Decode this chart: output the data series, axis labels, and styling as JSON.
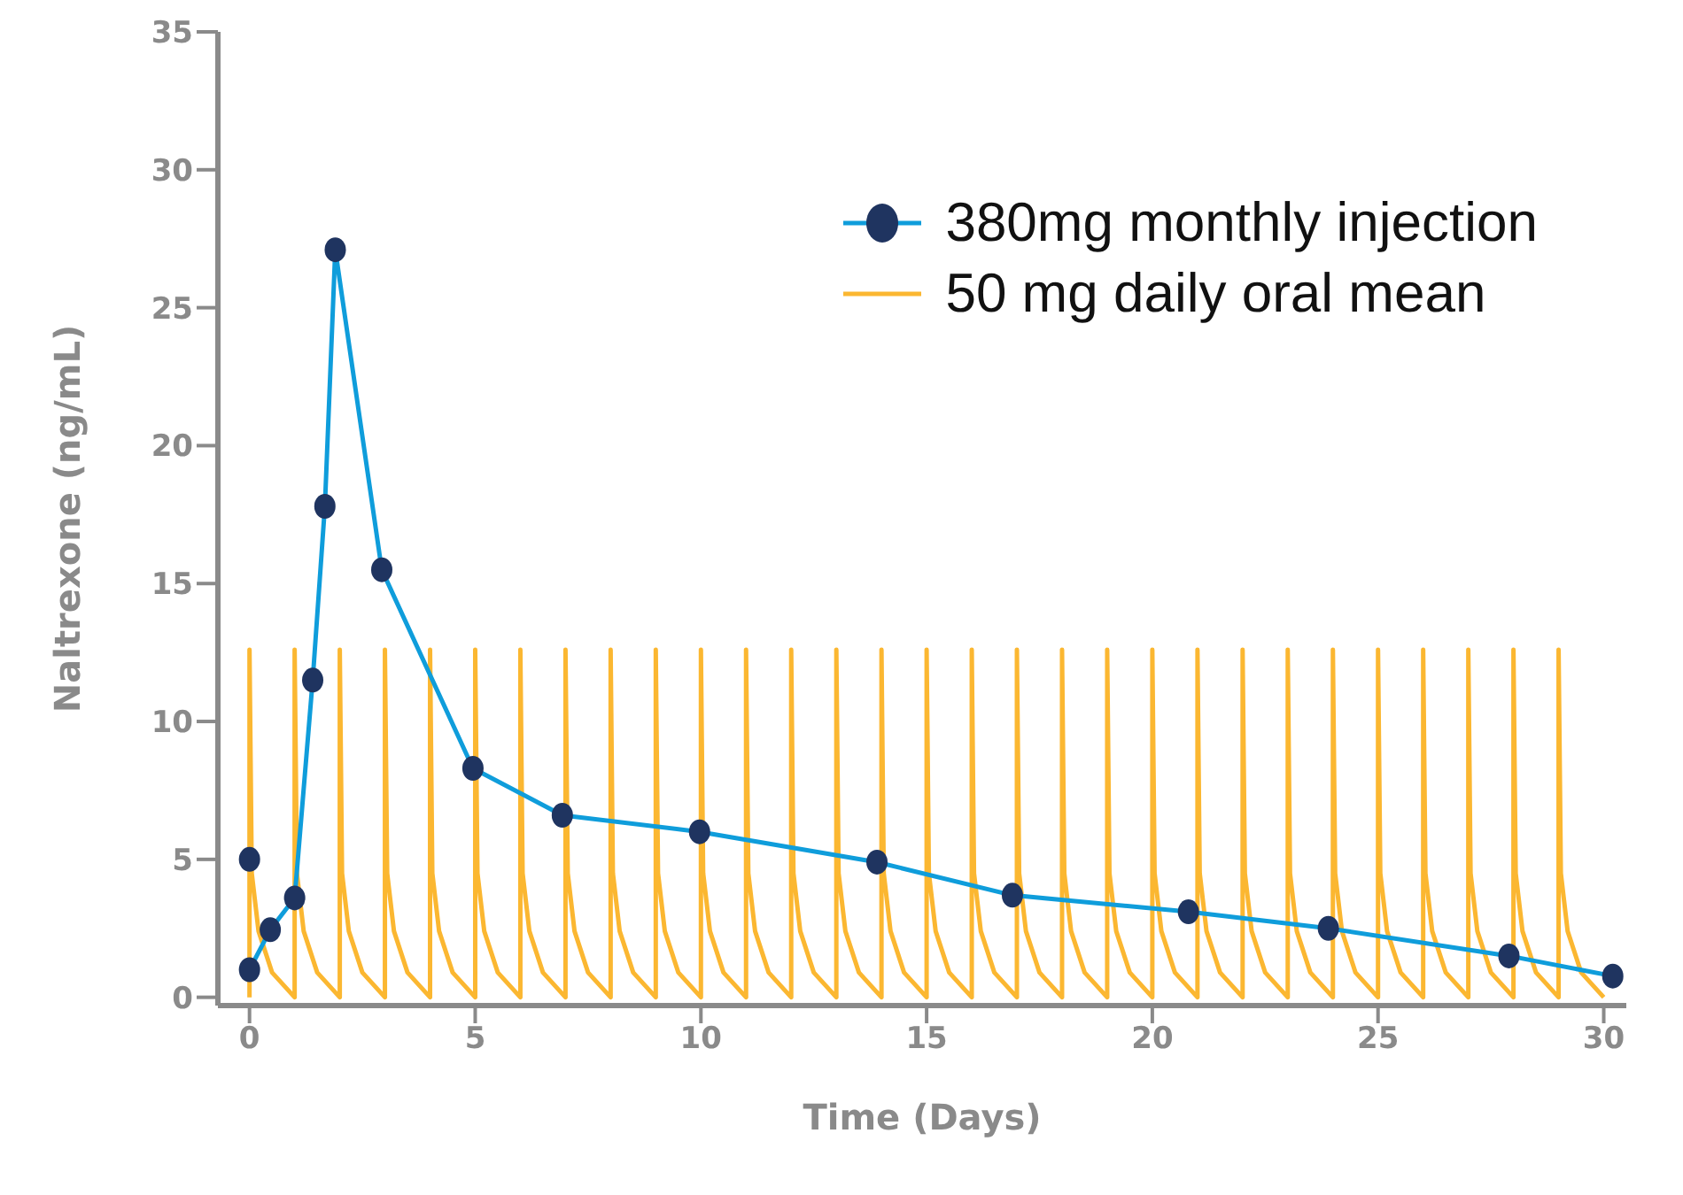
{
  "chart_data": {
    "type": "line",
    "xlabel": "Time (Days)",
    "ylabel": "Naltrexone (ng/mL)",
    "xlim": [
      -0.7,
      30.5
    ],
    "xticks": [
      0,
      5,
      10,
      15,
      20,
      25,
      30
    ],
    "ylim": [
      -0.3,
      35
    ],
    "yticks": [
      0,
      5,
      10,
      15,
      20,
      25,
      30,
      35
    ],
    "grid": false,
    "legend": "top right",
    "series": [
      {
        "name": "50 mg daily oral mean",
        "marker": "none",
        "color": "#fbb731",
        "x": [
          0,
          0,
          0.05,
          0.2,
          0.5,
          1,
          1,
          1.05,
          1.2,
          1.5,
          2,
          2,
          2.05,
          2.2,
          2.5,
          3,
          3,
          3.05,
          3.2,
          3.5,
          4,
          4,
          4.05,
          4.2,
          4.5,
          5,
          5,
          5.05,
          5.2,
          5.5,
          6,
          6,
          6.05,
          6.2,
          6.5,
          7,
          7,
          7.05,
          7.2,
          7.5,
          8,
          8,
          8.05,
          8.2,
          8.5,
          9,
          9,
          9.05,
          9.2,
          9.5,
          10,
          10,
          10.05,
          10.2,
          10.5,
          11,
          11,
          11.05,
          11.2,
          11.5,
          12,
          12,
          12.05,
          12.2,
          12.5,
          13,
          13,
          13.05,
          13.2,
          13.5,
          14,
          14,
          14.05,
          14.2,
          14.5,
          15,
          15,
          15.05,
          15.2,
          15.5,
          16,
          16,
          16.05,
          16.2,
          16.5,
          17,
          17,
          17.05,
          17.2,
          17.5,
          18,
          18,
          18.05,
          18.2,
          18.5,
          19,
          19,
          19.05,
          19.2,
          19.5,
          20,
          20,
          20.05,
          20.2,
          20.5,
          21,
          21,
          21.05,
          21.2,
          21.5,
          22,
          22,
          22.05,
          22.2,
          22.5,
          23,
          23,
          23.05,
          23.2,
          23.5,
          24,
          24,
          24.05,
          24.2,
          24.5,
          25,
          25,
          25.05,
          25.2,
          25.5,
          26,
          26,
          26.05,
          26.2,
          26.5,
          27,
          27,
          27.05,
          27.2,
          27.5,
          28,
          28,
          28.05,
          28.2,
          28.5,
          29,
          29,
          29.05,
          29.2,
          29.5,
          30
        ],
        "values": [
          0,
          12.6,
          4.5,
          2.4,
          0.9,
          0,
          12.6,
          4.5,
          2.4,
          0.9,
          0,
          12.6,
          4.5,
          2.4,
          0.9,
          0,
          12.6,
          4.5,
          2.4,
          0.9,
          0,
          12.6,
          4.5,
          2.4,
          0.9,
          0,
          12.6,
          4.5,
          2.4,
          0.9,
          0,
          12.6,
          4.5,
          2.4,
          0.9,
          0,
          12.6,
          4.5,
          2.4,
          0.9,
          0,
          12.6,
          4.5,
          2.4,
          0.9,
          0,
          12.6,
          4.5,
          2.4,
          0.9,
          0,
          12.6,
          4.5,
          2.4,
          0.9,
          0,
          12.6,
          4.5,
          2.4,
          0.9,
          0,
          12.6,
          4.5,
          2.4,
          0.9,
          0,
          12.6,
          4.5,
          2.4,
          0.9,
          0,
          12.6,
          4.5,
          2.4,
          0.9,
          0,
          12.6,
          4.5,
          2.4,
          0.9,
          0,
          12.6,
          4.5,
          2.4,
          0.9,
          0,
          12.6,
          4.5,
          2.4,
          0.9,
          0,
          12.6,
          4.5,
          2.4,
          0.9,
          0,
          12.6,
          4.5,
          2.4,
          0.9,
          0,
          12.6,
          4.5,
          2.4,
          0.9,
          0,
          12.6,
          4.5,
          2.4,
          0.9,
          0,
          12.6,
          4.5,
          2.4,
          0.9,
          0,
          12.6,
          4.5,
          2.4,
          0.9,
          0,
          12.6,
          4.5,
          2.4,
          0.9,
          0,
          12.6,
          4.5,
          2.4,
          0.9,
          0,
          12.6,
          4.5,
          2.4,
          0.9,
          0,
          12.6,
          4.5,
          2.4,
          0.9,
          0,
          12.6,
          4.5,
          2.4,
          0.9,
          0,
          12.6,
          4.5,
          2.4,
          0.9,
          0
        ]
      },
      {
        "name": "380mg monthly injection",
        "marker": "circle",
        "color": "#0f9ddb",
        "x": [
          0,
          0.46,
          1,
          1.4,
          1.67,
          1.9,
          2.93,
          4.95,
          6.93,
          9.97,
          13.9,
          16.9,
          20.8,
          23.9,
          27.9,
          30.2
        ],
        "values": [
          1,
          2.45,
          3.6,
          11.5,
          17.8,
          27.1,
          15.5,
          8.3,
          6.6,
          6,
          4.9,
          3.7,
          3.1,
          2.5,
          1.5,
          0.77
        ]
      },
      {
        "type": "scatter",
        "marker": "circle",
        "color": "#1f3460",
        "x": [
          0
        ],
        "values": [
          5
        ]
      }
    ]
  }
}
